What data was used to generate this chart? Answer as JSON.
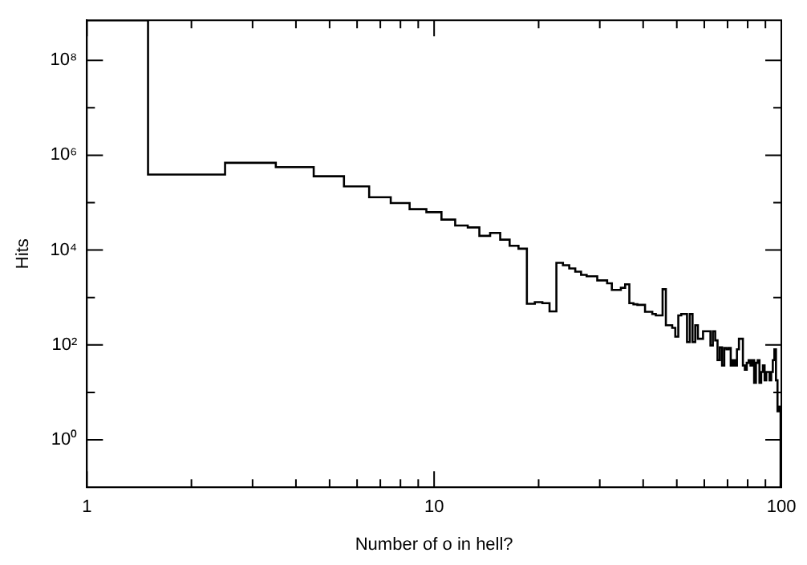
{
  "chart_data": {
    "type": "histogram",
    "xlabel": "Number of o in hell?",
    "ylabel": "Hits",
    "log": "xy",
    "bins": [
      1,
      1.5,
      2.5,
      3.5,
      4.5,
      5.5,
      6.5,
      7.5,
      8.5,
      9.5,
      10.5,
      11.5,
      12.5,
      13.5,
      14.5,
      15.5,
      16.5,
      17.5,
      18.5,
      19.5,
      20.5,
      21.5,
      22.5,
      23.5,
      24.5,
      25.5,
      26.5,
      27.5,
      28.5,
      29.5,
      30.5,
      31.5,
      32.5,
      33.5,
      34.5,
      35.5,
      36.5,
      37.5,
      38.5,
      39.5,
      40.5,
      41.5,
      42.5,
      43.5,
      44.5,
      45.5,
      46.5,
      47.5,
      48.5,
      49.5,
      50.5,
      51.5,
      52.5,
      53.5,
      54.5,
      55.5,
      56.5,
      57.5,
      58.5,
      59.5,
      60.5,
      61.5,
      62.5,
      63.5,
      64.5,
      65.5,
      66.5,
      67.5,
      68.5,
      69.5,
      70.5,
      71.5,
      72.5,
      73.5,
      74.5,
      75.5,
      76.5,
      77.5,
      78.5,
      79.5,
      80.5,
      81.5,
      82.5,
      83.5,
      84.5,
      85.5,
      86.5,
      87.5,
      88.5,
      89.5,
      90.5,
      91.5,
      92.5,
      93.5,
      94.5,
      95.5,
      96.5,
      97.5,
      98.5,
      99.5
    ],
    "values": [
      700000000,
      390000,
      690000,
      560000,
      360000,
      220000,
      130000,
      98000,
      73000,
      63000,
      44000,
      33000,
      30000,
      20000,
      23000,
      16600,
      12300,
      10700,
      740,
      800,
      760,
      510,
      5400,
      4800,
      4100,
      3500,
      3000,
      2800,
      2800,
      2300,
      2300,
      2000,
      1450,
      1450,
      1600,
      1900,
      760,
      720,
      700,
      700,
      500,
      500,
      450,
      420,
      420,
      1500,
      260,
      260,
      230,
      150,
      420,
      450,
      450,
      115,
      450,
      115,
      260,
      135,
      135,
      195,
      195,
      195,
      98,
      195,
      125,
      48,
      89,
      37,
      87,
      81,
      87,
      37,
      48,
      37,
      81,
      135,
      135,
      37,
      30,
      42,
      48,
      37,
      48,
      16,
      42,
      48,
      16,
      27,
      37,
      18,
      27,
      27,
      18,
      27,
      48,
      81,
      18,
      4,
      5
    ],
    "color": "#000000",
    "xlim": [
      1,
      100
    ],
    "xticks": [
      1,
      {
        "value": 2,
        "label": null
      },
      {
        "value": 3,
        "label": null
      },
      {
        "value": 4,
        "label": null
      },
      {
        "value": 5,
        "label": null
      },
      {
        "value": 6,
        "label": null
      },
      {
        "value": 7,
        "label": null
      },
      {
        "value": 8,
        "label": null
      },
      {
        "value": 9,
        "label": null
      },
      10,
      {
        "value": 20,
        "label": null
      },
      {
        "value": 30,
        "label": null
      },
      {
        "value": 40,
        "label": null
      },
      {
        "value": 50,
        "label": null
      },
      {
        "value": 60,
        "label": null
      },
      {
        "value": 70,
        "label": null
      },
      {
        "value": 80,
        "label": null
      },
      {
        "value": 90,
        "label": null
      },
      100
    ],
    "ylim": [
      0.1,
      700000000
    ],
    "yticks": [
      {
        "value": 1,
        "label": "10⁰"
      },
      {
        "value": 10,
        "label": null
      },
      {
        "value": 100,
        "label": "10²"
      },
      {
        "value": 1000,
        "label": null
      },
      {
        "value": 10000,
        "label": "10⁴"
      },
      {
        "value": 100000,
        "label": null
      },
      {
        "value": 1000000,
        "label": "10⁶"
      },
      {
        "value": 10000000,
        "label": null
      },
      {
        "value": 100000000,
        "label": "10⁸"
      }
    ]
  }
}
